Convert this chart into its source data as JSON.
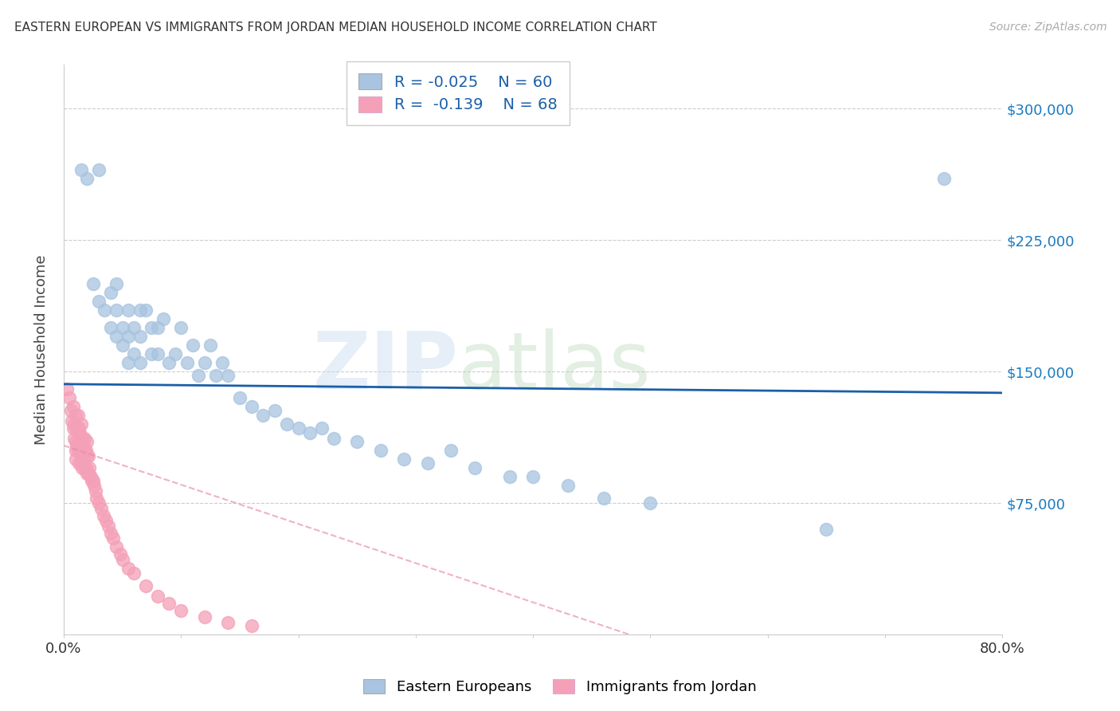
{
  "title": "EASTERN EUROPEAN VS IMMIGRANTS FROM JORDAN MEDIAN HOUSEHOLD INCOME CORRELATION CHART",
  "source": "Source: ZipAtlas.com",
  "ylabel": "Median Household Income",
  "yticks": [
    0,
    75000,
    150000,
    225000,
    300000
  ],
  "ytick_labels": [
    "",
    "$75,000",
    "$150,000",
    "$225,000",
    "$300,000"
  ],
  "xlim": [
    0.0,
    0.8
  ],
  "ylim": [
    0,
    325000
  ],
  "legend_r1": "R = -0.025",
  "legend_n1": "N = 60",
  "legend_r2": "R =  -0.139",
  "legend_n2": "N = 68",
  "blue_color": "#a8c4e0",
  "pink_color": "#f4a0b8",
  "trendline_blue_color": "#1a5fa8",
  "trendline_pink_color": "#e888a8",
  "blue_points_x": [
    0.015,
    0.02,
    0.025,
    0.03,
    0.03,
    0.035,
    0.04,
    0.04,
    0.045,
    0.045,
    0.045,
    0.05,
    0.05,
    0.055,
    0.055,
    0.055,
    0.06,
    0.06,
    0.065,
    0.065,
    0.065,
    0.07,
    0.075,
    0.075,
    0.08,
    0.08,
    0.085,
    0.09,
    0.095,
    0.1,
    0.105,
    0.11,
    0.115,
    0.12,
    0.125,
    0.13,
    0.135,
    0.14,
    0.15,
    0.16,
    0.17,
    0.18,
    0.19,
    0.2,
    0.21,
    0.22,
    0.23,
    0.25,
    0.27,
    0.29,
    0.31,
    0.33,
    0.35,
    0.38,
    0.4,
    0.43,
    0.46,
    0.5,
    0.65,
    0.75
  ],
  "blue_points_y": [
    265000,
    260000,
    200000,
    190000,
    265000,
    185000,
    195000,
    175000,
    200000,
    185000,
    170000,
    175000,
    165000,
    185000,
    170000,
    155000,
    175000,
    160000,
    185000,
    170000,
    155000,
    185000,
    175000,
    160000,
    175000,
    160000,
    180000,
    155000,
    160000,
    175000,
    155000,
    165000,
    148000,
    155000,
    165000,
    148000,
    155000,
    148000,
    135000,
    130000,
    125000,
    128000,
    120000,
    118000,
    115000,
    118000,
    112000,
    110000,
    105000,
    100000,
    98000,
    105000,
    95000,
    90000,
    90000,
    85000,
    78000,
    75000,
    60000,
    260000
  ],
  "pink_points_x": [
    0.003,
    0.005,
    0.006,
    0.007,
    0.008,
    0.008,
    0.009,
    0.009,
    0.01,
    0.01,
    0.01,
    0.01,
    0.01,
    0.011,
    0.011,
    0.012,
    0.012,
    0.012,
    0.013,
    0.013,
    0.013,
    0.014,
    0.014,
    0.015,
    0.015,
    0.015,
    0.015,
    0.016,
    0.016,
    0.016,
    0.017,
    0.017,
    0.018,
    0.018,
    0.018,
    0.019,
    0.019,
    0.02,
    0.02,
    0.02,
    0.021,
    0.021,
    0.022,
    0.023,
    0.024,
    0.025,
    0.026,
    0.027,
    0.028,
    0.03,
    0.032,
    0.034,
    0.036,
    0.038,
    0.04,
    0.042,
    0.045,
    0.048,
    0.05,
    0.055,
    0.06,
    0.07,
    0.08,
    0.09,
    0.1,
    0.12,
    0.14,
    0.16
  ],
  "pink_points_y": [
    140000,
    135000,
    128000,
    122000,
    118000,
    130000,
    120000,
    112000,
    125000,
    118000,
    110000,
    105000,
    100000,
    118000,
    108000,
    125000,
    115000,
    105000,
    118000,
    108000,
    98000,
    115000,
    105000,
    120000,
    112000,
    105000,
    98000,
    112000,
    102000,
    95000,
    108000,
    98000,
    112000,
    105000,
    95000,
    105000,
    95000,
    110000,
    102000,
    92000,
    102000,
    92000,
    95000,
    90000,
    88000,
    88000,
    85000,
    82000,
    78000,
    75000,
    72000,
    68000,
    65000,
    62000,
    58000,
    55000,
    50000,
    46000,
    43000,
    38000,
    35000,
    28000,
    22000,
    18000,
    14000,
    10000,
    7000,
    5000
  ]
}
